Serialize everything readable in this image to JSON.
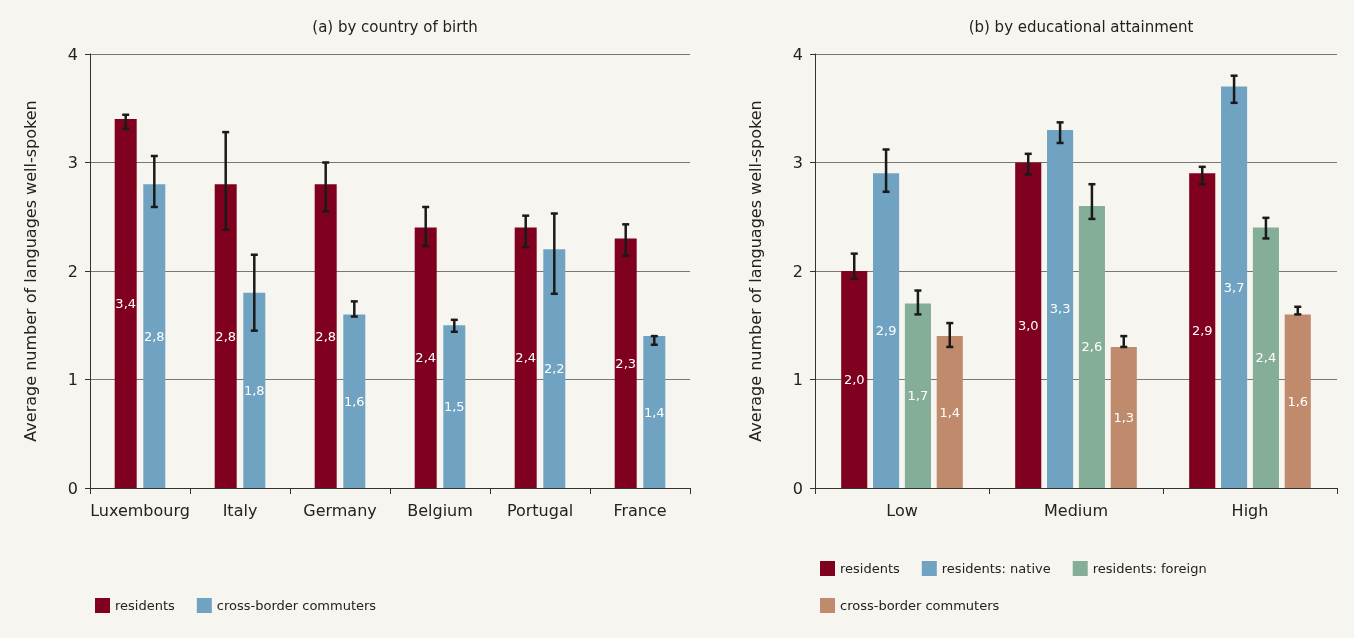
{
  "chart_data": [
    {
      "type": "bar",
      "title": "(a) by country of birth",
      "ylabel": "Average number of languages well-spoken",
      "categories": [
        "Luxembourg",
        "Italy",
        "Germany",
        "Belgium",
        "Portugal",
        "France"
      ],
      "ylim": [
        0,
        4
      ],
      "yticks": [
        0,
        1,
        2,
        3,
        4
      ],
      "grid": "y",
      "legend": "bottom left",
      "series": [
        {
          "name": "residents",
          "color": "#800020",
          "values": [
            3.4,
            2.8,
            2.8,
            2.4,
            2.4,
            2.3
          ],
          "value_labels": [
            "3,4",
            "2,8",
            "2,8",
            "2,4",
            "2,4",
            "2,3"
          ],
          "errors": [
            [
              3.31,
              3.44
            ],
            [
              2.38,
              3.28
            ],
            [
              2.55,
              3.0
            ],
            [
              2.23,
              2.59
            ],
            [
              2.22,
              2.51
            ],
            [
              2.14,
              2.43
            ]
          ]
        },
        {
          "name": "cross-border commuters",
          "color": "#6fa3c1",
          "values": [
            2.8,
            1.8,
            1.6,
            1.5,
            2.2,
            1.4
          ],
          "value_labels": [
            "2,8",
            "1,8",
            "1,6",
            "1,5",
            "2,2",
            "1,4"
          ],
          "errors": [
            [
              2.59,
              3.06
            ],
            [
              1.45,
              2.15
            ],
            [
              1.58,
              1.72
            ],
            [
              1.44,
              1.55
            ],
            [
              1.79,
              2.53
            ],
            [
              1.32,
              1.4
            ]
          ]
        }
      ]
    },
    {
      "type": "bar",
      "title": "(b) by educational attainment",
      "ylabel": "Average number of languages well-spoken",
      "categories": [
        "Low",
        "Medium",
        "High"
      ],
      "ylim": [
        0,
        4
      ],
      "yticks": [
        0,
        1,
        2,
        3,
        4
      ],
      "grid": "y",
      "legend": "bottom left",
      "series": [
        {
          "name": "residents",
          "color": "#800020",
          "values": [
            2.0,
            3.0,
            2.9
          ],
          "value_labels": [
            "2,0",
            "3,0",
            "2,9"
          ],
          "errors": [
            [
              1.93,
              2.16
            ],
            [
              2.89,
              3.08
            ],
            [
              2.8,
              2.96
            ]
          ]
        },
        {
          "name": "residents: native",
          "color": "#6fa3c1",
          "values": [
            2.9,
            3.3,
            3.7
          ],
          "value_labels": [
            "2,9",
            "3,3",
            "3,7"
          ],
          "errors": [
            [
              2.73,
              3.12
            ],
            [
              3.18,
              3.37
            ],
            [
              3.55,
              3.8
            ]
          ]
        },
        {
          "name": "residents: foreign",
          "color": "#85ae98",
          "values": [
            1.7,
            2.6,
            2.4
          ],
          "value_labels": [
            "1,7",
            "2,6",
            "2,4"
          ],
          "errors": [
            [
              1.6,
              1.82
            ],
            [
              2.48,
              2.8
            ],
            [
              2.3,
              2.49
            ]
          ]
        },
        {
          "name": "cross-border commuters",
          "color": "#bf8b6c",
          "values": [
            1.4,
            1.3,
            1.6
          ],
          "value_labels": [
            "1,4",
            "1,3",
            "1,6"
          ],
          "errors": [
            [
              1.3,
              1.52
            ],
            [
              1.3,
              1.4
            ],
            [
              1.6,
              1.67
            ]
          ]
        }
      ]
    }
  ]
}
